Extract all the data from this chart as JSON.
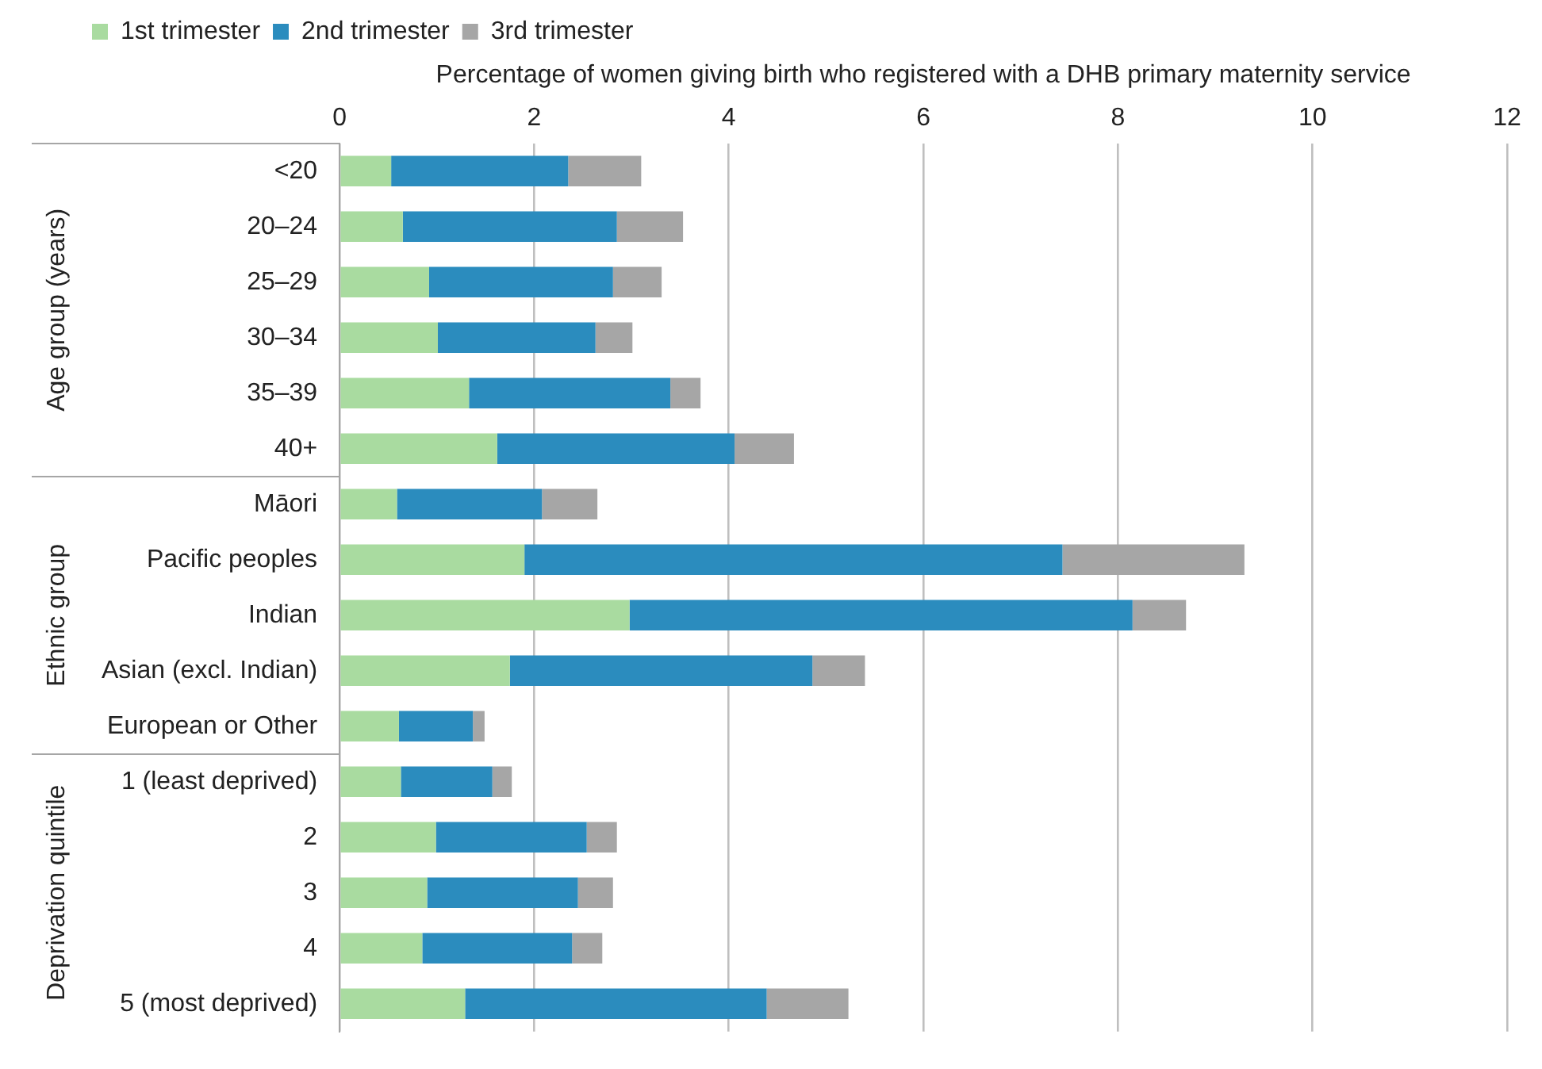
{
  "chart_data": {
    "type": "bar",
    "orientation": "horizontal",
    "stacked": true,
    "xlabel": "Percentage of women giving birth who registered with a DHB primary maternity service",
    "categories": [
      "<20",
      "20–24",
      "25–29",
      "30–34",
      "35–39",
      "40+",
      "Māori",
      "Pacific peoples",
      "Indian",
      "Asian (excl. Indian)",
      "European or Other",
      "1 (least deprived)",
      "2",
      "3",
      "4",
      "5 (most deprived)"
    ],
    "series": [
      {
        "name": "1st trimester",
        "color": "#a9dba0",
        "values": [
          0.53,
          0.65,
          0.92,
          1.01,
          1.33,
          1.62,
          0.59,
          1.9,
          2.98,
          1.75,
          0.61,
          0.63,
          0.99,
          0.9,
          0.85,
          1.29
        ]
      },
      {
        "name": "2nd trimester",
        "color": "#2b8cbe",
        "values": [
          1.82,
          2.2,
          1.89,
          1.62,
          2.07,
          2.44,
          1.49,
          5.53,
          5.17,
          3.11,
          0.76,
          0.94,
          1.55,
          1.55,
          1.54,
          3.1
        ]
      },
      {
        "name": "3rd trimester",
        "color": "#a6a6a6",
        "values": [
          0.75,
          0.68,
          0.5,
          0.38,
          0.31,
          0.61,
          0.57,
          1.87,
          0.55,
          0.54,
          0.12,
          0.2,
          0.31,
          0.36,
          0.31,
          0.84
        ]
      }
    ],
    "xlim": [
      0,
      12
    ],
    "xticks": [
      0,
      2,
      4,
      6,
      8,
      10,
      12
    ],
    "grid": "x",
    "legend": "top left",
    "annotations": [
      "Age group (years)",
      "Ethnic group",
      "Deprivation quintile"
    ]
  }
}
